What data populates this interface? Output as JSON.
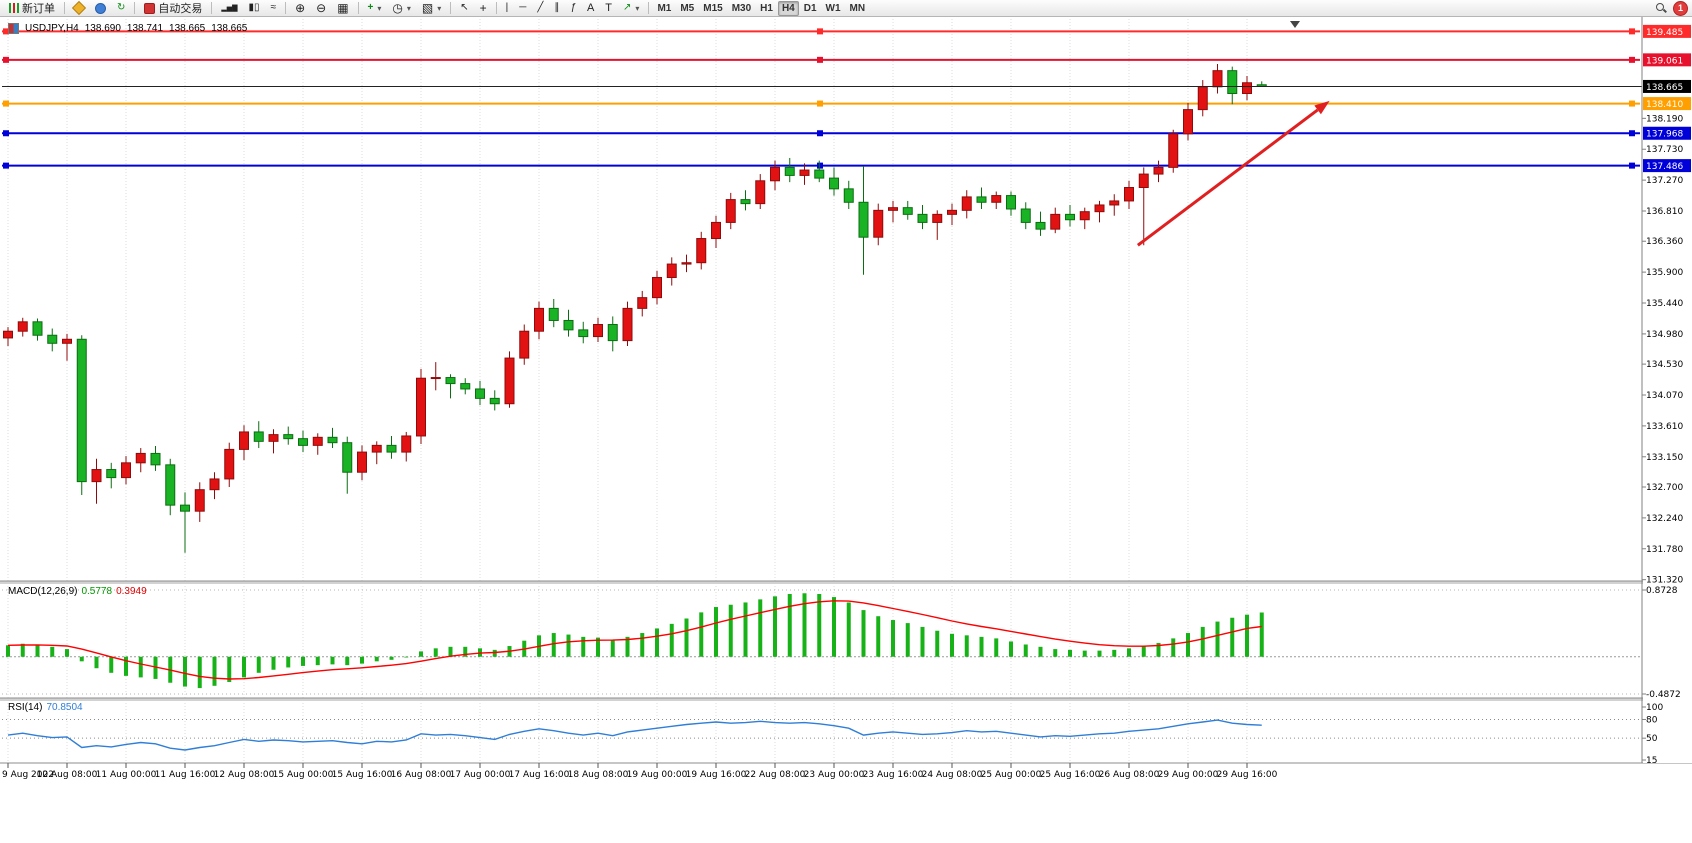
{
  "toolbar": {
    "new_order_label": "新订单",
    "autotrading_label": "自动交易",
    "timeframes": [
      "M1",
      "M5",
      "M15",
      "M30",
      "H1",
      "H4",
      "D1",
      "W1",
      "MN"
    ],
    "active_timeframe": "H4",
    "notification_count": "1",
    "icons": {
      "refresh": "↻",
      "bar_chart": "▂▅▇",
      "candle_chart": "▮▯",
      "line_chart": "≈",
      "zoom_in": "⊕",
      "zoom_out": "⊖",
      "tile": "▦",
      "indicators": "+",
      "periods": "◷",
      "templates": "▧",
      "cursor": "↖",
      "crosshair": "+",
      "vline": "|",
      "hline": "─",
      "trendline": "╱",
      "channel": "∥",
      "fibo": "ƒ",
      "text": "A",
      "text_label": "T",
      "arrows": "↗",
      "caret": "▾"
    }
  },
  "chart_header": {
    "symbol_period": "USDJPY,H4",
    "open": "138.690",
    "high": "138.741",
    "low": "138.665",
    "close": "138.665"
  },
  "indicators": {
    "macd_label": "MACD(12,26,9)",
    "macd_main_value": "0.5778",
    "macd_signal_value": "0.3949",
    "rsi_label": "RSI(14)",
    "rsi_value": "70.8504"
  },
  "colors": {
    "up": "#e21212",
    "up_border": "#8f0b0b",
    "down": "#19b325",
    "down_border": "#0b6e10",
    "macd_hist": "#17b217",
    "macd_signal": "#ff0000",
    "rsi_line": "#2f7ed8",
    "arrow": "#e02020",
    "grid": "#dcdcdc"
  },
  "chart_data": [
    {
      "type": "candlestick",
      "symbol": "USDJPY",
      "period": "H4",
      "price_range": {
        "max": 139.58,
        "min": 131.33
      },
      "candles": [
        [
          134.92,
          135.08,
          134.8,
          135.02
        ],
        [
          135.02,
          135.22,
          134.94,
          135.16
        ],
        [
          135.16,
          135.21,
          134.88,
          134.96
        ],
        [
          134.96,
          135.06,
          134.72,
          134.84
        ],
        [
          134.84,
          134.98,
          134.58,
          134.9
        ],
        [
          134.9,
          134.96,
          132.58,
          132.78
        ],
        [
          132.78,
          133.12,
          132.45,
          132.96
        ],
        [
          132.96,
          133.06,
          132.68,
          132.84
        ],
        [
          132.84,
          133.16,
          132.74,
          133.06
        ],
        [
          133.06,
          133.28,
          132.92,
          133.2
        ],
        [
          133.2,
          133.31,
          132.94,
          133.03
        ],
        [
          133.03,
          133.12,
          132.28,
          132.43
        ],
        [
          132.43,
          132.62,
          131.72,
          132.34
        ],
        [
          132.34,
          132.77,
          132.18,
          132.66
        ],
        [
          132.66,
          132.92,
          132.52,
          132.82
        ],
        [
          132.82,
          133.36,
          132.7,
          133.26
        ],
        [
          133.26,
          133.62,
          133.1,
          133.52
        ],
        [
          133.52,
          133.68,
          133.28,
          133.38
        ],
        [
          133.38,
          133.56,
          133.2,
          133.48
        ],
        [
          133.48,
          133.6,
          133.33,
          133.42
        ],
        [
          133.42,
          133.54,
          133.22,
          133.32
        ],
        [
          133.32,
          133.5,
          133.18,
          133.44
        ],
        [
          133.44,
          133.58,
          133.28,
          133.36
        ],
        [
          133.36,
          133.45,
          132.6,
          132.92
        ],
        [
          132.92,
          133.32,
          132.8,
          133.22
        ],
        [
          133.22,
          133.38,
          133.04,
          133.32
        ],
        [
          133.32,
          133.46,
          133.12,
          133.22
        ],
        [
          133.22,
          133.52,
          133.08,
          133.46
        ],
        [
          133.46,
          134.46,
          133.34,
          134.32
        ],
        [
          134.32,
          134.56,
          134.14,
          134.33
        ],
        [
          134.33,
          134.38,
          134.02,
          134.24
        ],
        [
          134.24,
          134.32,
          134.08,
          134.16
        ],
        [
          134.16,
          134.28,
          133.92,
          134.02
        ],
        [
          134.02,
          134.14,
          133.84,
          133.94
        ],
        [
          133.94,
          134.72,
          133.88,
          134.62
        ],
        [
          134.62,
          135.12,
          134.52,
          135.02
        ],
        [
          135.02,
          135.46,
          134.9,
          135.36
        ],
        [
          135.36,
          135.5,
          135.08,
          135.18
        ],
        [
          135.18,
          135.34,
          134.94,
          135.04
        ],
        [
          135.04,
          135.16,
          134.84,
          134.94
        ],
        [
          134.94,
          135.22,
          134.86,
          135.12
        ],
        [
          135.12,
          135.24,
          134.72,
          134.88
        ],
        [
          134.88,
          135.46,
          134.8,
          135.36
        ],
        [
          135.36,
          135.62,
          135.24,
          135.52
        ],
        [
          135.52,
          135.92,
          135.42,
          135.82
        ],
        [
          135.82,
          136.12,
          135.7,
          136.02
        ],
        [
          136.02,
          136.16,
          135.9,
          136.04
        ],
        [
          136.04,
          136.5,
          135.94,
          136.4
        ],
        [
          136.4,
          136.74,
          136.26,
          136.64
        ],
        [
          136.64,
          137.08,
          136.54,
          136.98
        ],
        [
          136.98,
          137.12,
          136.82,
          136.92
        ],
        [
          136.92,
          137.36,
          136.84,
          137.26
        ],
        [
          137.26,
          137.56,
          137.12,
          137.46
        ],
        [
          137.46,
          137.6,
          137.24,
          137.34
        ],
        [
          137.34,
          137.52,
          137.2,
          137.42
        ],
        [
          137.42,
          137.56,
          137.24,
          137.3
        ],
        [
          137.3,
          137.46,
          137.04,
          137.14
        ],
        [
          137.14,
          137.26,
          136.84,
          136.94
        ],
        [
          136.94,
          137.48,
          135.86,
          136.42
        ],
        [
          136.42,
          136.92,
          136.3,
          136.82
        ],
        [
          136.82,
          136.96,
          136.64,
          136.86
        ],
        [
          136.86,
          136.96,
          136.68,
          136.76
        ],
        [
          136.76,
          136.9,
          136.54,
          136.64
        ],
        [
          136.64,
          136.82,
          136.38,
          136.76
        ],
        [
          136.76,
          136.92,
          136.6,
          136.82
        ],
        [
          136.82,
          137.12,
          136.7,
          137.02
        ],
        [
          137.02,
          137.16,
          136.84,
          136.94
        ],
        [
          136.94,
          137.1,
          136.84,
          137.04
        ],
        [
          137.04,
          137.1,
          136.74,
          136.84
        ],
        [
          136.84,
          136.94,
          136.54,
          136.64
        ],
        [
          136.64,
          136.8,
          136.44,
          136.54
        ],
        [
          136.54,
          136.86,
          136.48,
          136.76
        ],
        [
          136.76,
          136.9,
          136.58,
          136.68
        ],
        [
          136.68,
          136.86,
          136.54,
          136.8
        ],
        [
          136.8,
          136.96,
          136.64,
          136.9
        ],
        [
          136.9,
          137.06,
          136.74,
          136.96
        ],
        [
          136.96,
          137.26,
          136.84,
          137.16
        ],
        [
          137.16,
          137.46,
          136.3,
          137.36
        ],
        [
          137.36,
          137.56,
          137.24,
          137.46
        ],
        [
          137.46,
          138.02,
          137.38,
          137.96
        ],
        [
          137.96,
          138.42,
          137.86,
          138.32
        ],
        [
          138.32,
          138.76,
          138.22,
          138.66
        ],
        [
          138.66,
          139.0,
          138.56,
          138.9
        ],
        [
          138.9,
          138.96,
          138.4,
          138.56
        ],
        [
          138.56,
          138.82,
          138.46,
          138.72
        ],
        [
          138.69,
          138.741,
          138.665,
          138.665
        ]
      ],
      "time_labels": [
        {
          "i": 0,
          "t": "9 Aug 2022"
        },
        {
          "i": 4,
          "t": "10 Aug 08:00"
        },
        {
          "i": 8,
          "t": "11 Aug 00:00"
        },
        {
          "i": 12,
          "t": "11 Aug 16:00"
        },
        {
          "i": 16,
          "t": "12 Aug 08:00"
        },
        {
          "i": 20,
          "t": "15 Aug 00:00"
        },
        {
          "i": 24,
          "t": "15 Aug 16:00"
        },
        {
          "i": 28,
          "t": "16 Aug 08:00"
        },
        {
          "i": 32,
          "t": "17 Aug 00:00"
        },
        {
          "i": 36,
          "t": "17 Aug 16:00"
        },
        {
          "i": 40,
          "t": "18 Aug 08:00"
        },
        {
          "i": 44,
          "t": "19 Aug 00:00"
        },
        {
          "i": 48,
          "t": "19 Aug 16:00"
        },
        {
          "i": 52,
          "t": "22 Aug 08:00"
        },
        {
          "i": 56,
          "t": "23 Aug 00:00"
        },
        {
          "i": 60,
          "t": "23 Aug 16:00"
        },
        {
          "i": 64,
          "t": "24 Aug 08:00"
        },
        {
          "i": 68,
          "t": "25 Aug 00:00"
        },
        {
          "i": 72,
          "t": "25 Aug 16:00"
        },
        {
          "i": 76,
          "t": "26 Aug 08:00"
        },
        {
          "i": 80,
          "t": "29 Aug 00:00"
        },
        {
          "i": 84,
          "t": "29 Aug 16:00"
        }
      ],
      "price_scale_ticks": [
        "138.190",
        "137.730",
        "137.270",
        "136.810",
        "136.360",
        "135.900",
        "135.440",
        "134.980",
        "134.530",
        "134.070",
        "133.610",
        "133.150",
        "132.700",
        "132.240",
        "131.780",
        "131.320"
      ],
      "hlines": [
        {
          "price": 139.485,
          "label": "139.485",
          "color": "#ff2a2a",
          "width": 2
        },
        {
          "price": 139.061,
          "label": "139.061",
          "color": "#e8112d",
          "width": 2
        },
        {
          "price": 138.41,
          "label": "138.410",
          "color": "#ff9f00",
          "width": 2
        },
        {
          "price": 137.968,
          "label": "137.968",
          "color": "#0000d8",
          "width": 2
        },
        {
          "price": 137.486,
          "label": "137.486",
          "color": "#0000d8",
          "width": 2
        }
      ],
      "bid": {
        "price": 138.665,
        "label": "138.665",
        "color": "#000000"
      },
      "arrow": {
        "from": {
          "i": 76.6,
          "price": 136.3
        },
        "to": {
          "i": 89.6,
          "price": 138.45
        },
        "color": "#e02020",
        "width": 3
      }
    },
    {
      "type": "bar",
      "name": "MACD",
      "label": "MACD(12,26,9)",
      "value_labels": [
        "0.5778",
        "0.3949"
      ],
      "scale_max": 0.8728,
      "scale_min": -0.4872,
      "scale_labels": [
        {
          "v": 0.8728,
          "t": "0.8728"
        },
        {
          "v": -0.4872,
          "t": "-0.4872"
        }
      ],
      "histogram": [
        0.15,
        0.17,
        0.16,
        0.13,
        0.1,
        -0.06,
        -0.15,
        -0.21,
        -0.25,
        -0.27,
        -0.29,
        -0.34,
        -0.39,
        -0.41,
        -0.38,
        -0.33,
        -0.27,
        -0.21,
        -0.17,
        -0.14,
        -0.12,
        -0.11,
        -0.1,
        -0.11,
        -0.09,
        -0.06,
        -0.04,
        -0.01,
        0.07,
        0.11,
        0.13,
        0.13,
        0.11,
        0.09,
        0.14,
        0.21,
        0.28,
        0.31,
        0.29,
        0.26,
        0.25,
        0.22,
        0.26,
        0.31,
        0.37,
        0.43,
        0.5,
        0.58,
        0.65,
        0.68,
        0.71,
        0.75,
        0.79,
        0.82,
        0.83,
        0.82,
        0.78,
        0.71,
        0.61,
        0.53,
        0.48,
        0.44,
        0.39,
        0.34,
        0.3,
        0.28,
        0.26,
        0.24,
        0.2,
        0.16,
        0.13,
        0.1,
        0.09,
        0.08,
        0.08,
        0.09,
        0.11,
        0.14,
        0.18,
        0.24,
        0.31,
        0.39,
        0.46,
        0.51,
        0.55,
        0.5778
      ],
      "signal": [
        0.15,
        0.154,
        0.155,
        0.15,
        0.14,
        0.1,
        0.05,
        -0.002,
        -0.052,
        -0.095,
        -0.134,
        -0.175,
        -0.218,
        -0.257,
        -0.281,
        -0.291,
        -0.287,
        -0.271,
        -0.251,
        -0.229,
        -0.207,
        -0.188,
        -0.17,
        -0.158,
        -0.145,
        -0.128,
        -0.11,
        -0.09,
        -0.058,
        -0.024,
        0.007,
        0.031,
        0.047,
        0.056,
        0.073,
        0.1,
        0.136,
        0.171,
        0.195,
        0.208,
        0.216,
        0.217,
        0.226,
        0.243,
        0.268,
        0.3,
        0.34,
        0.388,
        0.441,
        0.489,
        0.533,
        0.576,
        0.619,
        0.659,
        0.693,
        0.719,
        0.731,
        0.727,
        0.704,
        0.669,
        0.631,
        0.593,
        0.552,
        0.51,
        0.468,
        0.43,
        0.396,
        0.365,
        0.332,
        0.297,
        0.264,
        0.231,
        0.203,
        0.178,
        0.158,
        0.145,
        0.138,
        0.138,
        0.147,
        0.165,
        0.194,
        0.233,
        0.279,
        0.325,
        0.37,
        0.3949
      ]
    },
    {
      "type": "line",
      "name": "RSI",
      "label": "RSI(14)",
      "value_label": "70.8504",
      "range": {
        "max": 100,
        "min": 15
      },
      "levels": [
        80,
        50
      ],
      "scale_labels": [
        {
          "v": 100,
          "t": "100"
        },
        {
          "v": 80,
          "t": "80"
        },
        {
          "v": 50,
          "t": "50"
        },
        {
          "v": 15,
          "t": "15"
        }
      ],
      "values": [
        55,
        58,
        54,
        51,
        52,
        35,
        38,
        36,
        40,
        43,
        41,
        34,
        31,
        35,
        38,
        43,
        48,
        45,
        47,
        46,
        44,
        45,
        46,
        43,
        41,
        45,
        44,
        47,
        57,
        55,
        56,
        54,
        51,
        48,
        56,
        61,
        65,
        62,
        58,
        55,
        58,
        54,
        60,
        63,
        66,
        69,
        72,
        74,
        76,
        74,
        75,
        77,
        75,
        74,
        75,
        73,
        70,
        66,
        55,
        58,
        60,
        58,
        56,
        57,
        59,
        62,
        60,
        61,
        58,
        55,
        52,
        54,
        53,
        55,
        57,
        58,
        61,
        63,
        65,
        69,
        73,
        76,
        79,
        74,
        72,
        70.85
      ]
    }
  ]
}
